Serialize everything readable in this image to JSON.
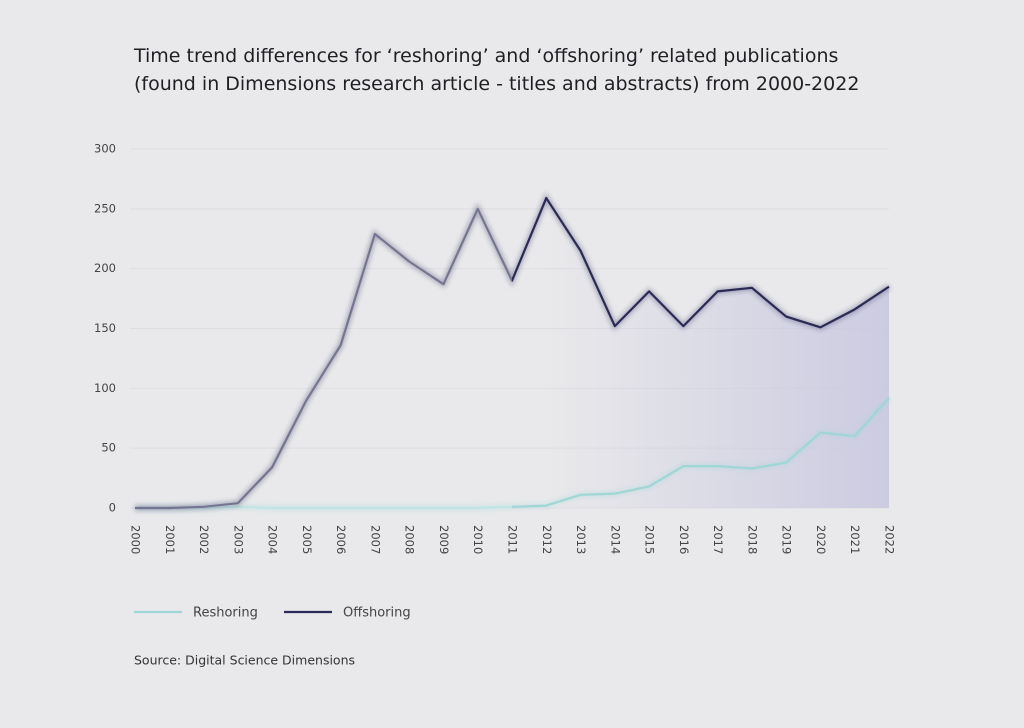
{
  "chart_data": {
    "type": "line",
    "title": "Time trend differences for ‘reshoring’ and ‘offshoring’ related publications",
    "subtitle": "(found in Dimensions research article - titles and abstracts) from 2000-2022",
    "source": "Source: Digital Science Dimensions",
    "categories": [
      "2000",
      "2001",
      "2002",
      "2003",
      "2004",
      "2005",
      "2006",
      "2007",
      "2008",
      "2009",
      "2010",
      "2011",
      "2012",
      "2013",
      "2014",
      "2015",
      "2016",
      "2017",
      "2018",
      "2019",
      "2020",
      "2021",
      "2022"
    ],
    "series": [
      {
        "name": "Reshoring",
        "color": "#9fd6d6",
        "values": [
          0,
          0,
          0,
          1,
          0,
          0,
          0,
          0,
          0,
          0,
          0,
          1,
          2,
          11,
          12,
          18,
          35,
          35,
          33,
          38,
          63,
          60,
          92
        ]
      },
      {
        "name": "Offshoring",
        "color": "#2b2a57",
        "values": [
          0,
          0,
          1,
          4,
          34,
          90,
          136,
          229,
          206,
          187,
          250,
          190,
          259,
          215,
          152,
          181,
          152,
          181,
          184,
          160,
          151,
          166,
          185
        ]
      }
    ],
    "ylim": [
      0,
      300
    ],
    "yticks": [
      0,
      50,
      100,
      150,
      200,
      250,
      300
    ],
    "grid": true
  }
}
